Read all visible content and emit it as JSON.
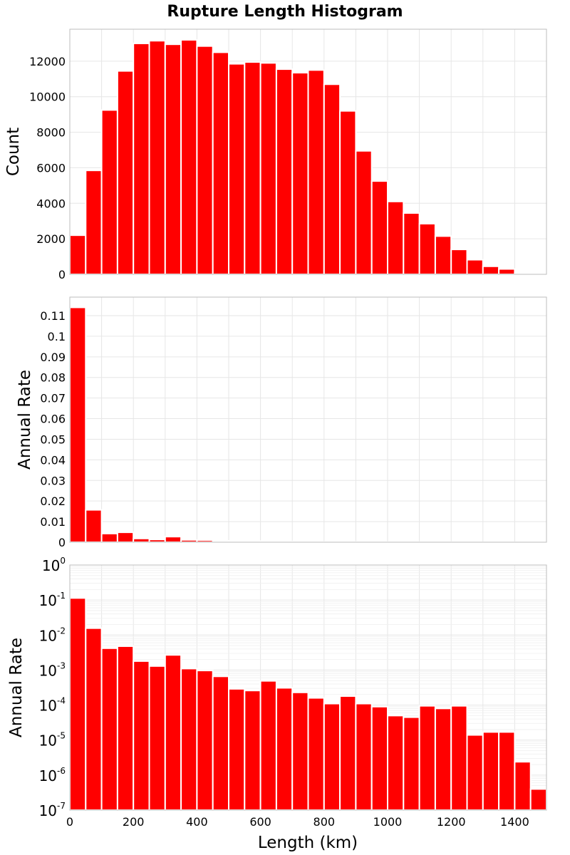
{
  "figure_title": "Rupture Length Histogram",
  "colors": {
    "bar": "#ff0000",
    "grid": "#e6e6e6",
    "frame": "#bdbdbd"
  },
  "xlabel": "Length (km)",
  "chart_data": [
    {
      "type": "bar",
      "scale": "linear",
      "ylabel": "Count",
      "bin_width": 50,
      "xlim": [
        0,
        1500
      ],
      "ylim": [
        0,
        13800
      ],
      "yticks": [
        0,
        2000,
        4000,
        6000,
        8000,
        10000,
        12000
      ],
      "ytick_labels": [
        "0",
        "2000",
        "4000",
        "6000",
        "8000",
        "10000",
        "12000"
      ],
      "bins": [
        0,
        50,
        100,
        150,
        200,
        250,
        300,
        350,
        400,
        450,
        500,
        550,
        600,
        650,
        700,
        750,
        800,
        850,
        900,
        950,
        1000,
        1050,
        1100,
        1150,
        1200,
        1250,
        1300,
        1350,
        1400,
        1450
      ],
      "values": [
        2200,
        5850,
        9250,
        11450,
        13000,
        13150,
        12950,
        13200,
        12850,
        12500,
        11850,
        11950,
        11900,
        11550,
        11350,
        11500,
        10700,
        9200,
        6950,
        5250,
        4100,
        3450,
        2850,
        2150,
        1400,
        820,
        450,
        300,
        70,
        10
      ]
    },
    {
      "type": "bar",
      "scale": "linear",
      "ylabel": "Annual Rate",
      "bin_width": 50,
      "xlim": [
        0,
        1500
      ],
      "ylim": [
        0,
        0.119
      ],
      "yticks": [
        0,
        0.01,
        0.02,
        0.03,
        0.04,
        0.05,
        0.06,
        0.07,
        0.08,
        0.09,
        0.1,
        0.11
      ],
      "ytick_labels": [
        "0",
        "0.01",
        "0.02",
        "0.03",
        "0.04",
        "0.05",
        "0.06",
        "0.07",
        "0.08",
        "0.09",
        "0.1",
        "0.11"
      ],
      "bins": [
        0,
        50,
        100,
        150,
        200,
        250,
        300,
        350,
        400,
        450,
        500,
        550,
        600,
        650,
        700,
        750,
        800,
        850,
        900,
        950,
        1000,
        1050,
        1100,
        1150,
        1200,
        1250,
        1300,
        1350,
        1400,
        1450
      ],
      "values": [
        0.114,
        0.0157,
        0.0042,
        0.0048,
        0.0018,
        0.0013,
        0.0027,
        0.0011,
        0.00097,
        0.00066,
        0.00029,
        0.00026,
        0.00049,
        0.00031,
        0.00023,
        0.00016,
        0.00011,
        0.00018,
        0.00011,
        9e-05,
        5e-05,
        4.5e-05,
        9.5e-05,
        8e-05,
        9.5e-05,
        1.4e-05,
        1.7e-05,
        1.7e-05,
        2.4e-06,
        4e-07
      ]
    },
    {
      "type": "bar",
      "scale": "log",
      "ylabel": "Annual Rate",
      "bin_width": 50,
      "xlim": [
        0,
        1500
      ],
      "ylim": [
        1e-07,
        1
      ],
      "ytick_exponents": [
        0,
        -1,
        -2,
        -3,
        -4,
        -5,
        -6,
        -7
      ],
      "ytick_base": "10",
      "xticks": [
        0,
        200,
        400,
        600,
        800,
        1000,
        1200,
        1400
      ],
      "xtick_labels": [
        "0",
        "200",
        "400",
        "600",
        "800",
        "1000",
        "1200",
        "1400"
      ],
      "bins": [
        0,
        50,
        100,
        150,
        200,
        250,
        300,
        350,
        400,
        450,
        500,
        550,
        600,
        650,
        700,
        750,
        800,
        850,
        900,
        950,
        1000,
        1050,
        1100,
        1150,
        1200,
        1250,
        1300,
        1350,
        1400,
        1450
      ],
      "values": [
        0.114,
        0.0157,
        0.0042,
        0.0048,
        0.0018,
        0.0013,
        0.0027,
        0.0011,
        0.00097,
        0.00066,
        0.00029,
        0.00026,
        0.00049,
        0.00031,
        0.00023,
        0.00016,
        0.00011,
        0.00018,
        0.00011,
        9e-05,
        5e-05,
        4.5e-05,
        9.5e-05,
        8e-05,
        9.5e-05,
        1.4e-05,
        1.7e-05,
        1.7e-05,
        2.4e-06,
        4e-07
      ]
    }
  ]
}
